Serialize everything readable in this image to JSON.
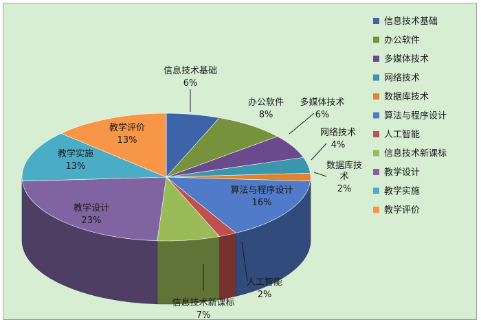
{
  "chart_data": {
    "type": "pie",
    "title": "",
    "legend_position": "right",
    "unit": "%",
    "slices": [
      {
        "label": "信息技术基础",
        "value": 6,
        "color": "#3d64a8"
      },
      {
        "label": "办公软件",
        "value": 8,
        "color": "#76923c"
      },
      {
        "label": "多媒体技术",
        "value": 6,
        "color": "#6a4a8c"
      },
      {
        "label": "网络技术",
        "value": 4,
        "color": "#3b96ad"
      },
      {
        "label": "数据库技术",
        "value": 2,
        "color": "#e0832f"
      },
      {
        "label": "算法与程序设计",
        "value": 16,
        "color": "#4f7bc8"
      },
      {
        "label": "人工智能",
        "value": 2,
        "color": "#c0504d"
      },
      {
        "label": "信息技术新课标",
        "value": 7,
        "color": "#9bbb59"
      },
      {
        "label": "教学设计",
        "value": 23,
        "color": "#8064a2"
      },
      {
        "label": "教学实施",
        "value": 13,
        "color": "#4bacc6"
      },
      {
        "label": "教学评价",
        "value": 13,
        "color": "#f79646"
      }
    ]
  }
}
